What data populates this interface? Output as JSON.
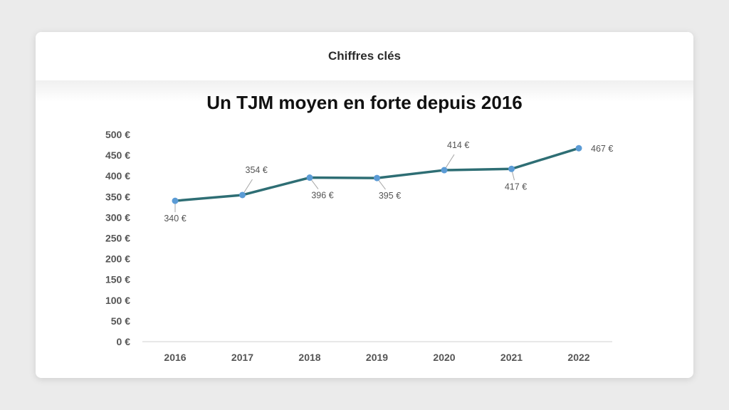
{
  "header": {
    "label": "Chiffres clés"
  },
  "colors": {
    "line": "#2e6e74",
    "marker": "#5b9bd5",
    "axis": "#d9d9d9",
    "leader": "#a6a6a6",
    "tick_text": "#555555"
  },
  "chart_data": {
    "type": "line",
    "title": "Un TJM moyen en forte depuis 2016",
    "xlabel": "",
    "ylabel": "",
    "categories": [
      "2016",
      "2017",
      "2018",
      "2019",
      "2020",
      "2021",
      "2022"
    ],
    "series": [
      {
        "values": [
          340,
          354,
          396,
          395,
          414,
          417,
          467
        ],
        "data_labels": [
          "340 €",
          "354 €",
          "396 €",
          "395 €",
          "414 €",
          "417 €",
          "467 €"
        ]
      }
    ],
    "ylim": [
      0,
      500
    ],
    "y_ticks": [
      0,
      50,
      100,
      150,
      200,
      250,
      300,
      350,
      400,
      450,
      500
    ],
    "y_tick_labels": [
      "0 €",
      "50 €",
      "100 €",
      "150 €",
      "200 €",
      "250 €",
      "300 €",
      "350 €",
      "400 €",
      "450 €",
      "500 €"
    ],
    "grid": false,
    "legend": "none"
  }
}
